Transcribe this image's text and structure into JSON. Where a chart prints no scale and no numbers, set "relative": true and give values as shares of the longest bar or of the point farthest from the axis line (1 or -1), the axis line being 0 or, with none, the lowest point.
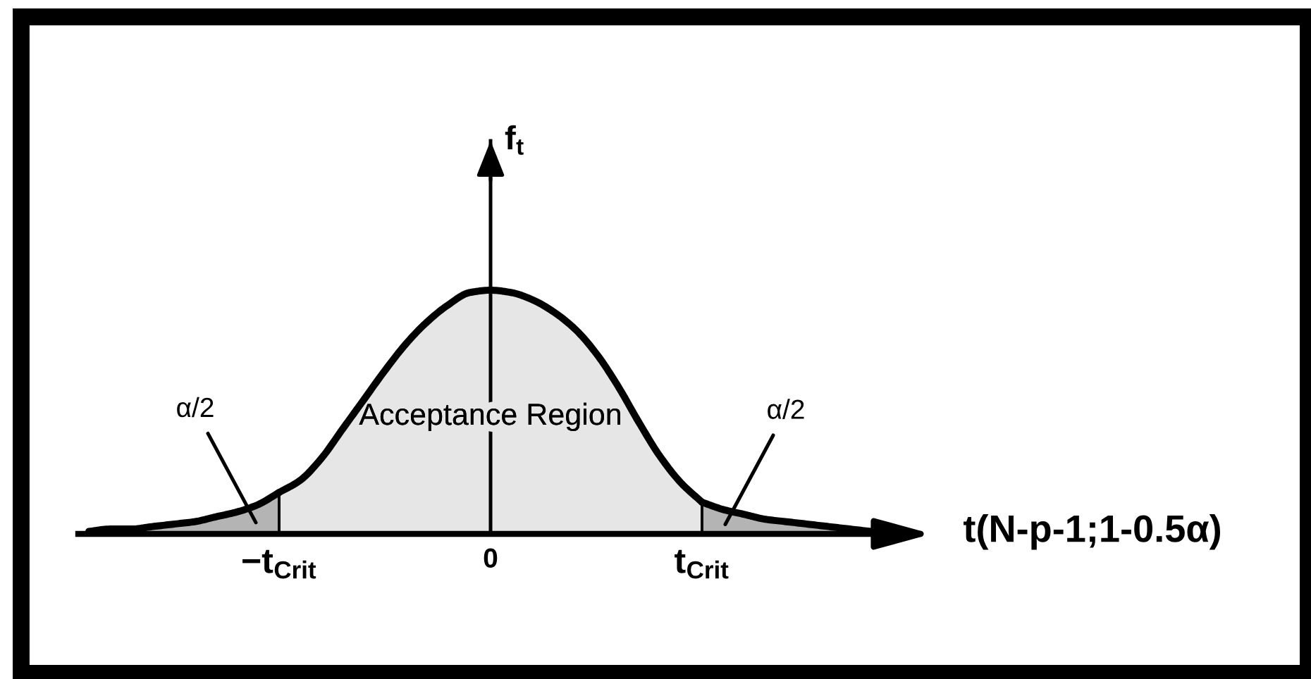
{
  "chart_data": {
    "type": "area",
    "relative": true,
    "xlabel": "t(N-p-1;1-0.5α)",
    "ylabel": "f$_{t}$",
    "categories": [
      null,
      null,
      null,
      null,
      null,
      null,
      null,
      null,
      null,
      "−t$_{Crit}$",
      null,
      null,
      null,
      null,
      null,
      null,
      null,
      null,
      null,
      "0",
      null,
      null,
      null,
      null,
      null,
      null,
      null,
      null,
      null,
      "t$_{Crit}$",
      null,
      null,
      null,
      null,
      null,
      null,
      null,
      null,
      null
    ],
    "series": [
      {
        "name": "α/2",
        "color": "#b4b4b4",
        "values": [
          0.01,
          0.02,
          0.02,
          0.03,
          0.04,
          0.05,
          0.07,
          0.09,
          0.12,
          0.17,
          null,
          null,
          null,
          null,
          null,
          null,
          null,
          null,
          null,
          null,
          null,
          null,
          null,
          null,
          null,
          null,
          null,
          null,
          null,
          null,
          null,
          null,
          null,
          null,
          null,
          null,
          null,
          null,
          null
        ]
      },
      {
        "name": "Acceptance Region",
        "color": "#e6e6e6",
        "values": [
          null,
          null,
          null,
          null,
          null,
          null,
          null,
          null,
          null,
          0.17,
          0.22,
          0.31,
          0.43,
          0.55,
          0.67,
          0.78,
          0.87,
          0.94,
          0.99,
          1.0,
          0.99,
          0.96,
          0.91,
          0.84,
          0.74,
          0.61,
          0.46,
          0.32,
          0.21,
          0.13,
          null,
          null,
          null,
          null,
          null,
          null,
          null,
          null,
          null
        ]
      },
      {
        "name": "α/2",
        "color": "#b4b4b4",
        "values": [
          null,
          null,
          null,
          null,
          null,
          null,
          null,
          null,
          null,
          null,
          null,
          null,
          null,
          null,
          null,
          null,
          null,
          null,
          null,
          null,
          null,
          null,
          null,
          null,
          null,
          null,
          null,
          null,
          null,
          0.13,
          0.1,
          0.08,
          0.06,
          0.05,
          0.04,
          0.03,
          0.02,
          0.01,
          null
        ]
      }
    ]
  }
}
